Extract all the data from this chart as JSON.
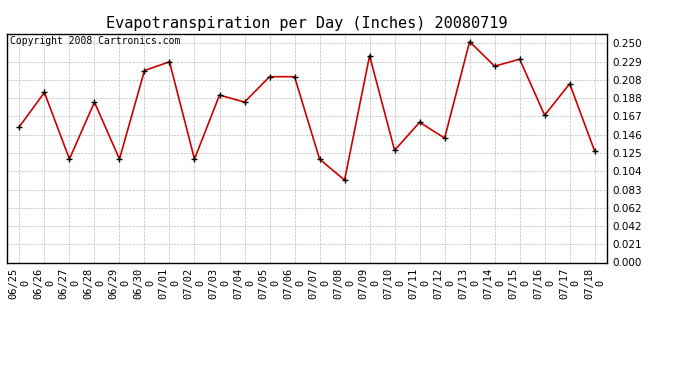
{
  "title": "Evapotranspiration per Day (Inches) 20080719",
  "copyright": "Copyright 2008 Cartronics.com",
  "x_labels": [
    "06/25\n0",
    "06/26\n0",
    "06/27\n0",
    "06/28\n0",
    "06/29\n0",
    "06/30\n0",
    "07/01\n0",
    "07/02\n0",
    "07/03\n0",
    "07/04\n0",
    "07/05\n0",
    "07/06\n0",
    "07/07\n0",
    "07/08\n0",
    "07/09\n0",
    "07/10\n0",
    "07/11\n0",
    "07/12\n0",
    "07/13\n0",
    "07/14\n0",
    "07/15\n0",
    "07/16\n0",
    "07/17\n0",
    "07/18\n0"
  ],
  "values": [
    0.155,
    0.194,
    0.118,
    0.183,
    0.118,
    0.219,
    0.229,
    0.118,
    0.191,
    0.183,
    0.212,
    0.212,
    0.118,
    0.094,
    0.236,
    0.128,
    0.16,
    0.142,
    0.252,
    0.224,
    0.232,
    0.168,
    0.204,
    0.127
  ],
  "line_color": "#cc0000",
  "marker_color": "#cc0000",
  "bg_color": "#ffffff",
  "plot_bg_color": "#ffffff",
  "grid_color": "#bbbbbb",
  "yticks": [
    0.0,
    0.021,
    0.042,
    0.062,
    0.083,
    0.104,
    0.125,
    0.146,
    0.167,
    0.188,
    0.208,
    0.229,
    0.25
  ],
  "ylim": [
    0.0,
    0.261
  ],
  "title_fontsize": 11,
  "tick_fontsize": 7.5,
  "copyright_fontsize": 7
}
